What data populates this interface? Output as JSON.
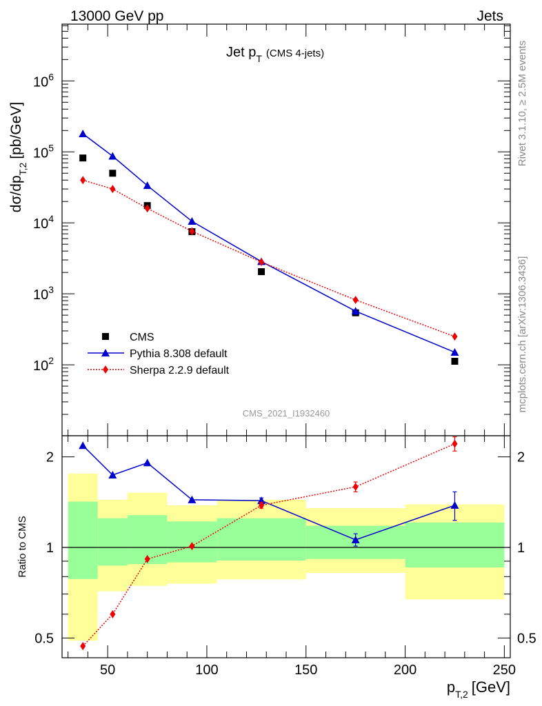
{
  "header": {
    "left": "13000 GeV pp",
    "right": "Jets"
  },
  "side_labels": {
    "rivet": "Rivet 3.1.10, ≥ 2.5M events",
    "mcplots": "mcplots.cern.ch [arXiv:1306.3436]"
  },
  "chart_data": [
    {
      "type": "scatter",
      "title": "Jet p",
      "title_sub": "T",
      "title_note": "(CMS 4-jets)",
      "watermark": "CMS_2021_I1932460",
      "ylabel": "dσ/dp",
      "ylabel_sub": "T,2",
      "ylabel_unit": "[pb/GeV]",
      "yscale": "log",
      "xlim": [
        27,
        253
      ],
      "ylim_log10": [
        1.0,
        6.8
      ],
      "y_ticks": [
        {
          "v": 2,
          "base": "10",
          "exp": "2"
        },
        {
          "v": 3,
          "base": "10",
          "exp": "3"
        },
        {
          "v": 4,
          "base": "10",
          "exp": "4"
        },
        {
          "v": 5,
          "base": "10",
          "exp": "5"
        },
        {
          "v": 6,
          "base": "10",
          "exp": "6"
        }
      ],
      "legend": {
        "position": "bottom-left"
      },
      "series": [
        {
          "name": "CMS",
          "marker": "square",
          "color": "#000000",
          "line": "none",
          "x": [
            37.5,
            52.5,
            70,
            92.5,
            127.5,
            175,
            225
          ],
          "y": [
            82000,
            50000,
            17500,
            7500,
            2050,
            540,
            112
          ]
        },
        {
          "name": "Pythia 8.308 default",
          "marker": "triangle",
          "color": "#0000cc",
          "line": "solid",
          "x": [
            37.5,
            52.5,
            70,
            92.5,
            127.5,
            175,
            225
          ],
          "y": [
            180000,
            87000,
            33500,
            10500,
            2850,
            570,
            150
          ]
        },
        {
          "name": "Sherpa 2.2.9 default",
          "marker": "diamond",
          "color": "#ee0000",
          "line": "dotted",
          "x": [
            37.5,
            52.5,
            70,
            92.5,
            127.5,
            175,
            225
          ],
          "y": [
            40000,
            30000,
            16000,
            7600,
            2800,
            820,
            250
          ]
        }
      ]
    },
    {
      "type": "scatter",
      "xlabel": "p",
      "xlabel_sub": "T,2",
      "xlabel_unit": "[GeV]",
      "ylabel": "Ratio to CMS",
      "yscale": "log",
      "xlim": [
        27,
        253
      ],
      "ylim": [
        0.43,
        2.35
      ],
      "x_ticks": [
        "50",
        "100",
        "150",
        "200",
        "250"
      ],
      "y_ticks": [
        "0.5",
        "1",
        "2"
      ],
      "bands": {
        "edges": [
          30,
          45,
          60,
          80,
          105,
          150,
          200,
          250
        ],
        "yellow_lo": [
          0.49,
          0.715,
          0.745,
          0.758,
          0.783,
          0.823,
          0.672
        ],
        "yellow_hi": [
          1.76,
          1.44,
          1.52,
          1.38,
          1.44,
          1.35,
          1.39
        ],
        "green_lo": [
          0.785,
          0.87,
          0.88,
          0.892,
          0.904,
          0.916,
          0.858
        ],
        "green_hi": [
          1.42,
          1.25,
          1.28,
          1.22,
          1.25,
          1.18,
          1.21
        ]
      },
      "series": [
        {
          "name": "Pythia 8.308 default",
          "marker": "triangle",
          "color": "#0000cc",
          "line": "solid",
          "x": [
            37.5,
            52.5,
            70,
            92.5,
            127.5,
            175,
            225
          ],
          "y": [
            2.18,
            1.74,
            1.91,
            1.44,
            1.43,
            1.06,
            1.38
          ],
          "err": [
            0,
            0,
            0,
            0,
            0.03,
            0.05,
            0.15
          ]
        },
        {
          "name": "Sherpa 2.2.9 default",
          "marker": "diamond",
          "color": "#ee0000",
          "line": "dotted",
          "x": [
            37.5,
            52.5,
            70,
            92.5,
            127.5,
            175,
            225
          ],
          "y": [
            0.47,
            0.6,
            0.915,
            1.01,
            1.38,
            1.59,
            2.21
          ],
          "err": [
            0,
            0,
            0,
            0,
            0.03,
            0.06,
            0.12
          ]
        }
      ]
    }
  ]
}
